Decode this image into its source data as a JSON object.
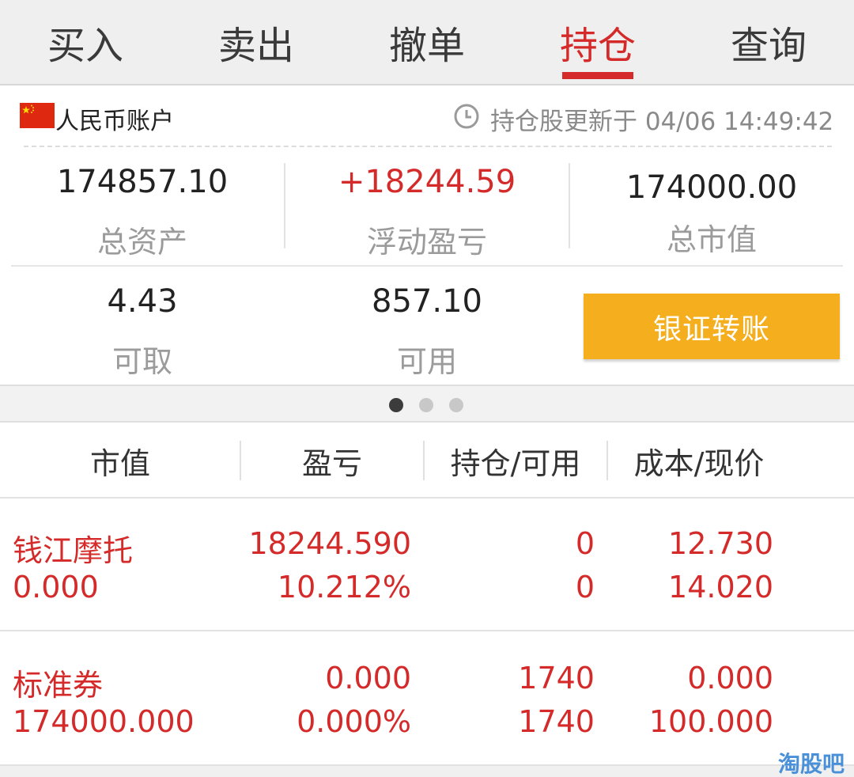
{
  "tabs": [
    {
      "label": "买入"
    },
    {
      "label": "卖出"
    },
    {
      "label": "撤单"
    },
    {
      "label": "持仓"
    },
    {
      "label": "查询"
    }
  ],
  "active_tab": "持仓",
  "account": {
    "name": "人民币账户",
    "update_text": "持仓股更新于 04/06 14:49:42"
  },
  "summary": {
    "total_assets": {
      "value": "174857.10",
      "label": "总资产"
    },
    "floating_pl": {
      "value": "+18244.59",
      "label": "浮动盈亏"
    },
    "market_value": {
      "value": "174000.00",
      "label": "总市值"
    },
    "withdrawable": {
      "value": "4.43",
      "label": "可取"
    },
    "available": {
      "value": "857.10",
      "label": "可用"
    },
    "transfer_button": "银证转账"
  },
  "pager": {
    "pages": 3,
    "current": 1
  },
  "table": {
    "headers": [
      "市值",
      "盈亏",
      "持仓/可用",
      "成本/现价"
    ],
    "rows": [
      {
        "name": "钱江摩托",
        "market_value": "0.000",
        "pl": "18244.590",
        "pl_pct": "10.212%",
        "position": "0",
        "available": "0",
        "cost": "12.730",
        "price": "14.020"
      },
      {
        "name": "标准券",
        "market_value": "174000.000",
        "pl": "0.000",
        "pl_pct": "0.000%",
        "position": "1740",
        "available": "1740",
        "cost": "0.000",
        "price": "100.000"
      }
    ]
  },
  "watermark": "淘股吧",
  "colors": {
    "accent_red": "#d42a2a",
    "button_orange": "#f4ae1e"
  }
}
